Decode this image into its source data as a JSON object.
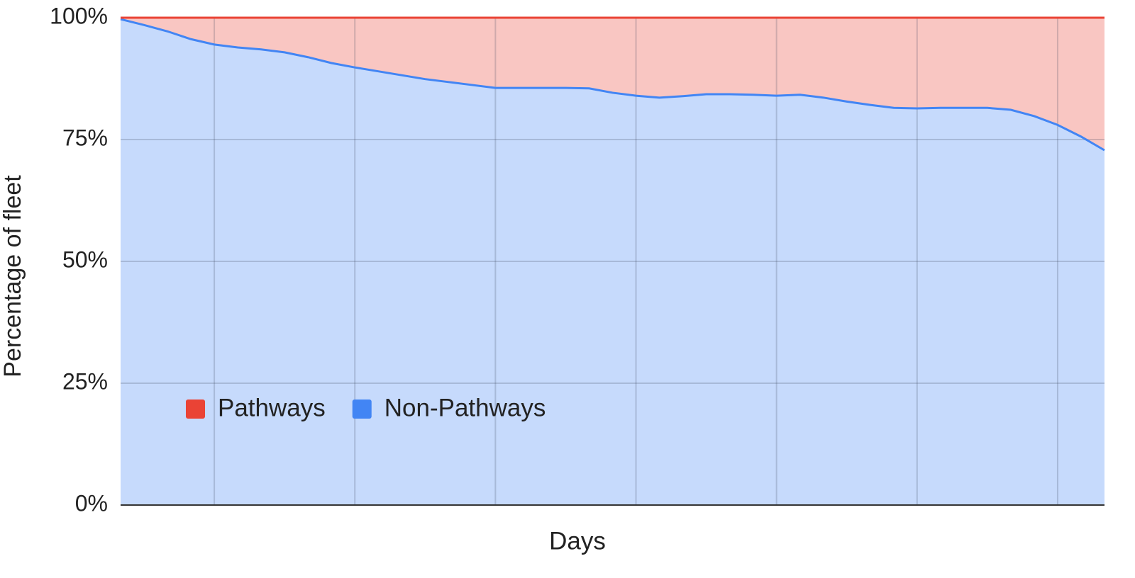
{
  "chart_data": {
    "type": "stacked_area",
    "x_label": "Days",
    "y_label": "Percentage of fleet",
    "categories": [
      null,
      null,
      null,
      null,
      null,
      null,
      null,
      null,
      null,
      null,
      null,
      null,
      null,
      null,
      null,
      null,
      null,
      null,
      null,
      null,
      null,
      null,
      null,
      null,
      null,
      null,
      null,
      null,
      null,
      null,
      null,
      null,
      null,
      null,
      null,
      null,
      null,
      null,
      null,
      null,
      null,
      null,
      null
    ],
    "series": [
      {
        "name": "Pathways",
        "color": "#ea4335",
        "values": [
          0.3,
          1.5,
          2.8,
          4.4,
          5.5,
          6.1,
          6.5,
          7.1,
          8.1,
          9.3,
          10.2,
          11.0,
          11.8,
          12.6,
          13.2,
          13.8,
          14.4,
          14.4,
          14.4,
          14.4,
          14.5,
          15.4,
          16.0,
          16.4,
          16.1,
          15.7,
          15.7,
          15.8,
          16.0,
          15.8,
          16.4,
          17.2,
          17.9,
          18.5,
          18.6,
          18.5,
          18.5,
          18.5,
          18.9,
          20.2,
          22.0,
          24.4,
          27.2
        ]
      },
      {
        "name": "Non-Pathways",
        "color": "#4285f4",
        "values": [
          99.7,
          98.5,
          97.2,
          95.6,
          94.5,
          93.9,
          93.5,
          92.9,
          91.9,
          90.7,
          89.8,
          89.0,
          88.2,
          87.4,
          86.8,
          86.2,
          85.6,
          85.6,
          85.6,
          85.6,
          85.5,
          84.6,
          84.0,
          83.6,
          83.9,
          84.3,
          84.3,
          84.2,
          84.0,
          84.2,
          83.6,
          82.8,
          82.1,
          81.5,
          81.4,
          81.5,
          81.5,
          81.5,
          81.1,
          79.8,
          78.0,
          75.6,
          72.8
        ]
      }
    ],
    "ylim": [
      0,
      100
    ],
    "yticks": [
      {
        "value": 0,
        "label": "0%"
      },
      {
        "value": 25,
        "label": "25%"
      },
      {
        "value": 50,
        "label": "50%"
      },
      {
        "value": 75,
        "label": "75%"
      },
      {
        "value": 100,
        "label": "100%"
      }
    ],
    "grid": true,
    "legend": "bottom-left"
  }
}
